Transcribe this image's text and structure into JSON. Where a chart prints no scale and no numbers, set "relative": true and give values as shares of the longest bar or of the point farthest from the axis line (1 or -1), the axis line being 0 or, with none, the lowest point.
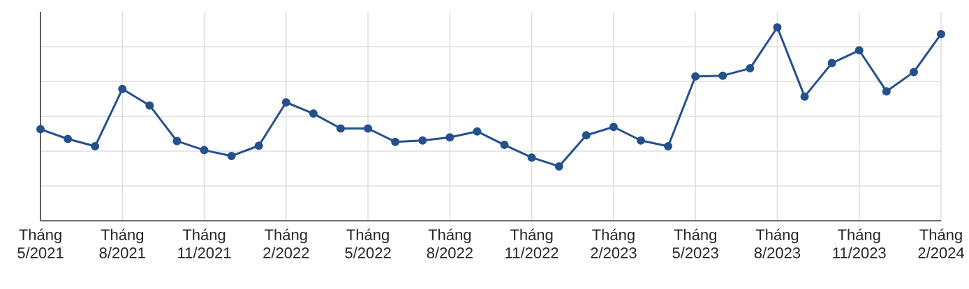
{
  "chart_data": {
    "type": "line",
    "relative": true,
    "categories": [
      "Tháng 5/2021",
      null,
      null,
      "Tháng 8/2021",
      null,
      null,
      "Tháng 11/2021",
      null,
      null,
      "Tháng 2/2022",
      null,
      null,
      "Tháng 5/2022",
      null,
      null,
      "Tháng 8/2022",
      null,
      null,
      "Tháng 11/2022",
      null,
      null,
      "Tháng 2/2023",
      null,
      null,
      "Tháng 5/2023",
      null,
      null,
      "Tháng 8/2023",
      null,
      null,
      "Tháng 11/2023",
      null,
      null,
      "Tháng 2/2024"
    ],
    "series": [
      {
        "color": "#24508c",
        "values": [
          0.473,
          0.423,
          0.385,
          0.681,
          0.596,
          0.412,
          0.365,
          0.335,
          0.388,
          0.612,
          0.554,
          0.477,
          0.477,
          0.408,
          0.415,
          0.431,
          0.462,
          0.392,
          0.327,
          0.281,
          0.442,
          0.485,
          0.415,
          0.385,
          0.746,
          0.75,
          0.788,
          1,
          0.642,
          0.815,
          0.881,
          0.669,
          0.769,
          0.965
        ]
      }
    ],
    "grid": true,
    "marker": "circle",
    "line_style": "solid"
  }
}
